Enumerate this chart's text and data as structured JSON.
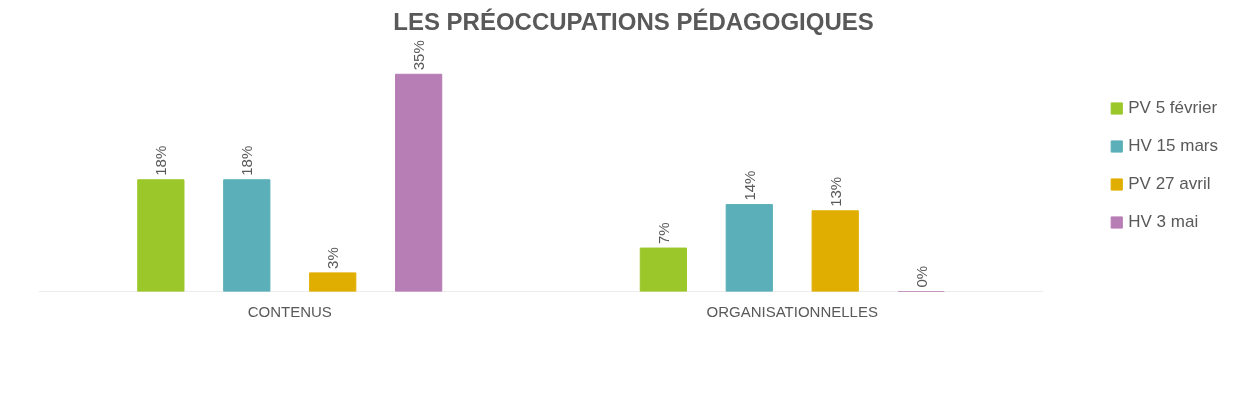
{
  "chart_data": {
    "type": "bar",
    "title": "LES PRÉOCCUPATIONS PÉDAGOGIQUES",
    "categories": [
      "CONTENUS",
      "ORGANISATIONNELLES"
    ],
    "legend": "right",
    "series": [
      {
        "name": "PV 5 février",
        "color": "#9bc72a",
        "values": [
          18,
          7
        ],
        "value_labels": [
          "18%",
          "7%"
        ]
      },
      {
        "name": "HV 15 mars",
        "color": "#5aafb8",
        "values": [
          18,
          14
        ],
        "value_labels": [
          "18%",
          "14%"
        ]
      },
      {
        "name": "PV 27 avril",
        "color": "#e0ae00",
        "values": [
          3,
          13
        ],
        "value_labels": [
          "3%",
          "13%"
        ]
      },
      {
        "name": "HV 3 mai",
        "color": "#b77db5",
        "values": [
          35,
          0
        ],
        "value_labels": [
          "35%",
          "0%"
        ]
      }
    ]
  }
}
